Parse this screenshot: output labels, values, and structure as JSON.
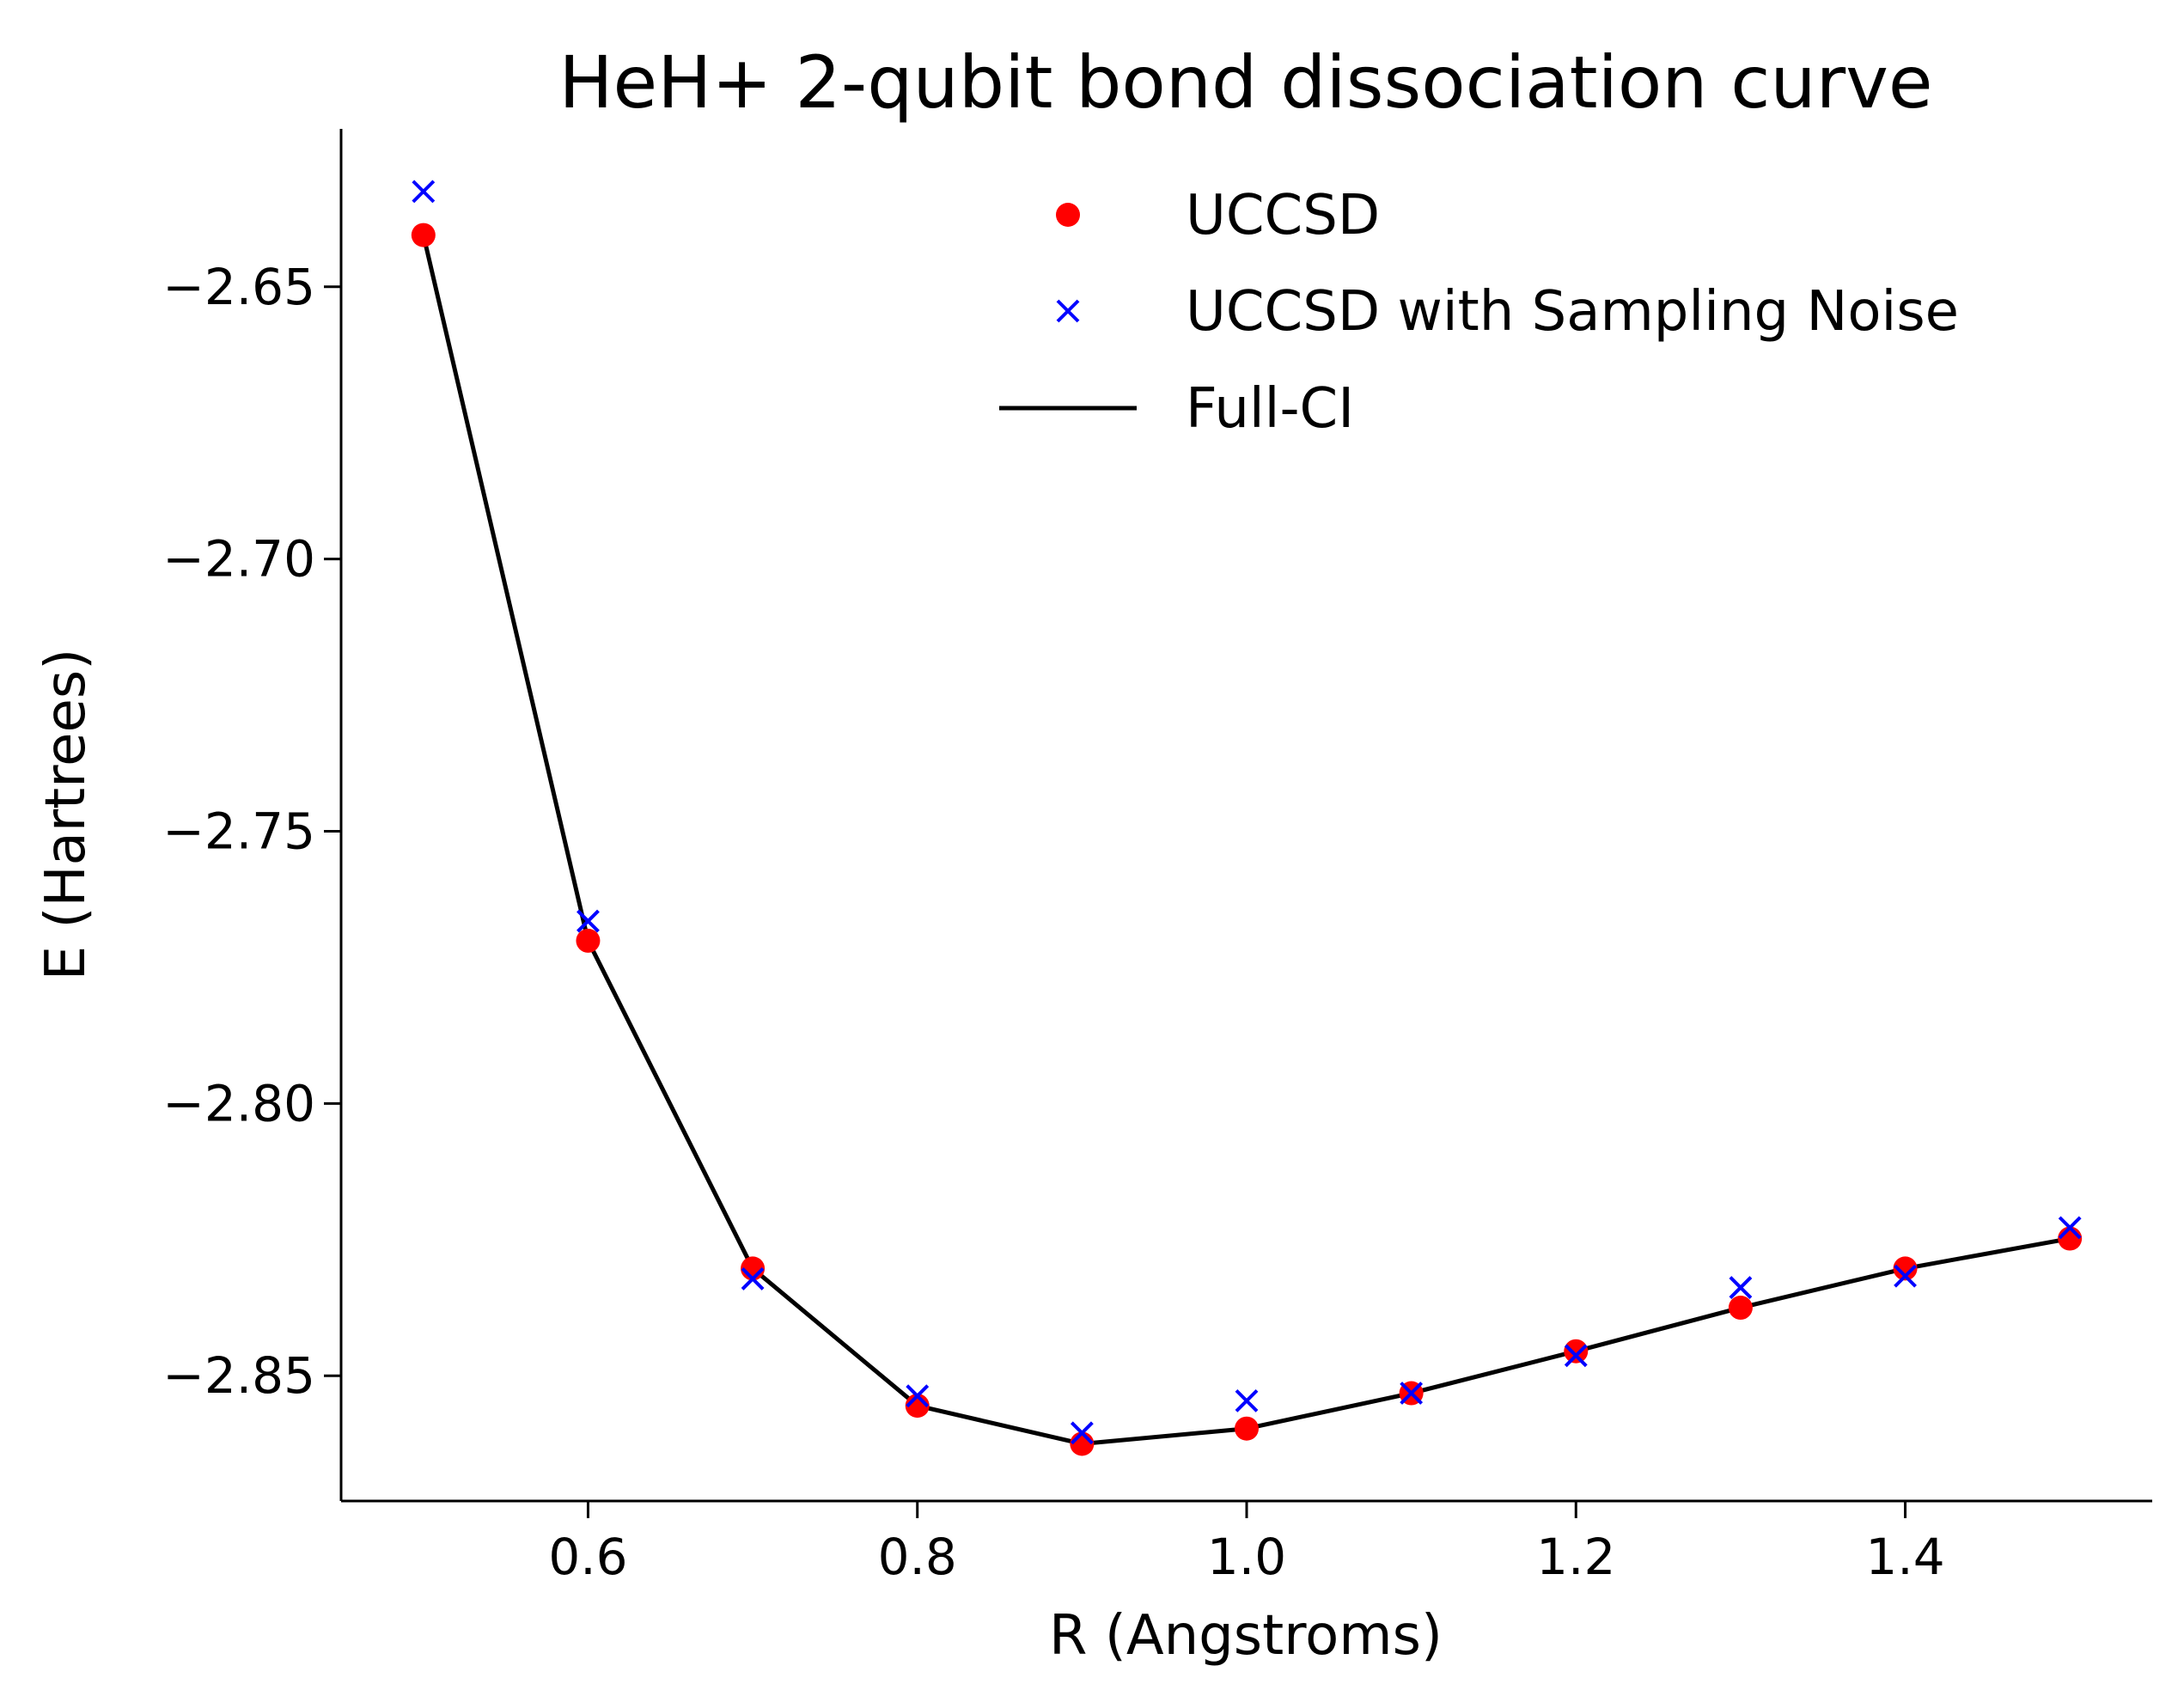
{
  "chart_data": {
    "type": "line",
    "title": "HeH+ 2-qubit bond dissociation curve",
    "xlabel": "R (Angstroms)",
    "ylabel": "E (Hartrees)",
    "xlim": [
      0.45,
      1.55
    ],
    "ylim": [
      -2.873,
      -2.621
    ],
    "xticks": [
      0.6,
      0.8,
      1.0,
      1.2,
      1.4
    ],
    "xtick_labels": [
      "0.6",
      "0.8",
      "1.0",
      "1.2",
      "1.4"
    ],
    "yticks": [
      -2.65,
      -2.7,
      -2.75,
      -2.8,
      -2.85
    ],
    "ytick_labels": [
      "−2.65",
      "−2.70",
      "−2.75",
      "−2.80",
      "−2.85"
    ],
    "grid": false,
    "legend_position": "top-right",
    "x": [
      0.5,
      0.6,
      0.7,
      0.8,
      0.9,
      1.0,
      1.1,
      1.2,
      1.3,
      1.4,
      1.5
    ],
    "series": [
      {
        "name": "UCCSD",
        "kind": "scatter",
        "marker": "circle",
        "color": "#ff0000",
        "values": [
          -2.6405,
          -2.7701,
          -2.8303,
          -2.8555,
          -2.8625,
          -2.8597,
          -2.8532,
          -2.8455,
          -2.8375,
          -2.8303,
          -2.8248
        ]
      },
      {
        "name": "UCCSD with Sampling Noise",
        "kind": "scatter",
        "marker": "x",
        "color": "#0000ff",
        "values": [
          -2.6325,
          -2.7665,
          -2.8322,
          -2.8537,
          -2.8605,
          -2.8546,
          -2.8532,
          -2.8463,
          -2.8338,
          -2.8317,
          -2.8228
        ]
      },
      {
        "name": "Full-CI",
        "kind": "line",
        "color": "#000000",
        "values": [
          -2.6405,
          -2.7701,
          -2.8303,
          -2.8555,
          -2.8625,
          -2.8597,
          -2.8532,
          -2.8455,
          -2.8375,
          -2.8303,
          -2.8248
        ]
      }
    ]
  }
}
